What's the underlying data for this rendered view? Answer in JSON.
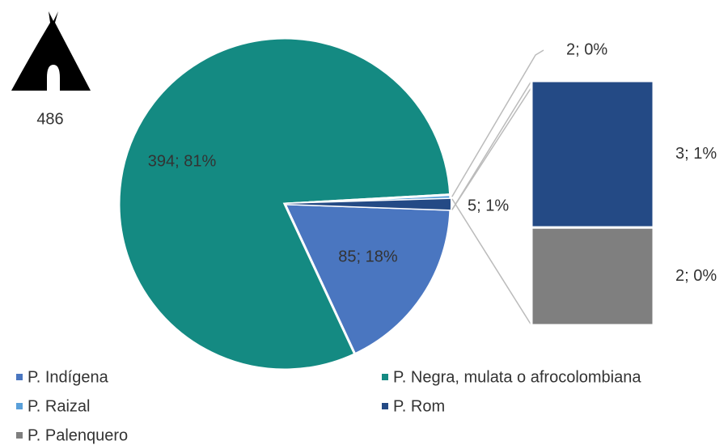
{
  "chart_data": {
    "type": "pie-of-bar",
    "total": 486,
    "categories": [
      "P. Indígena",
      "P. Negra, mulata o afrocolombiana",
      "P. Raizal",
      "P. Rom",
      "P. Palenquero"
    ],
    "values": [
      85,
      394,
      2,
      3,
      2
    ],
    "value_labels": [
      "85; 18%",
      "394; 81%",
      "2; 0%",
      "3; 1%",
      "2; 0%"
    ],
    "colors": [
      "#4a76c0",
      "#148a82",
      "#5aa0da",
      "#244a85",
      "#7f7f7f"
    ],
    "bar_count": 2,
    "other": {
      "value": 5,
      "label": "5; 1%"
    }
  }
}
